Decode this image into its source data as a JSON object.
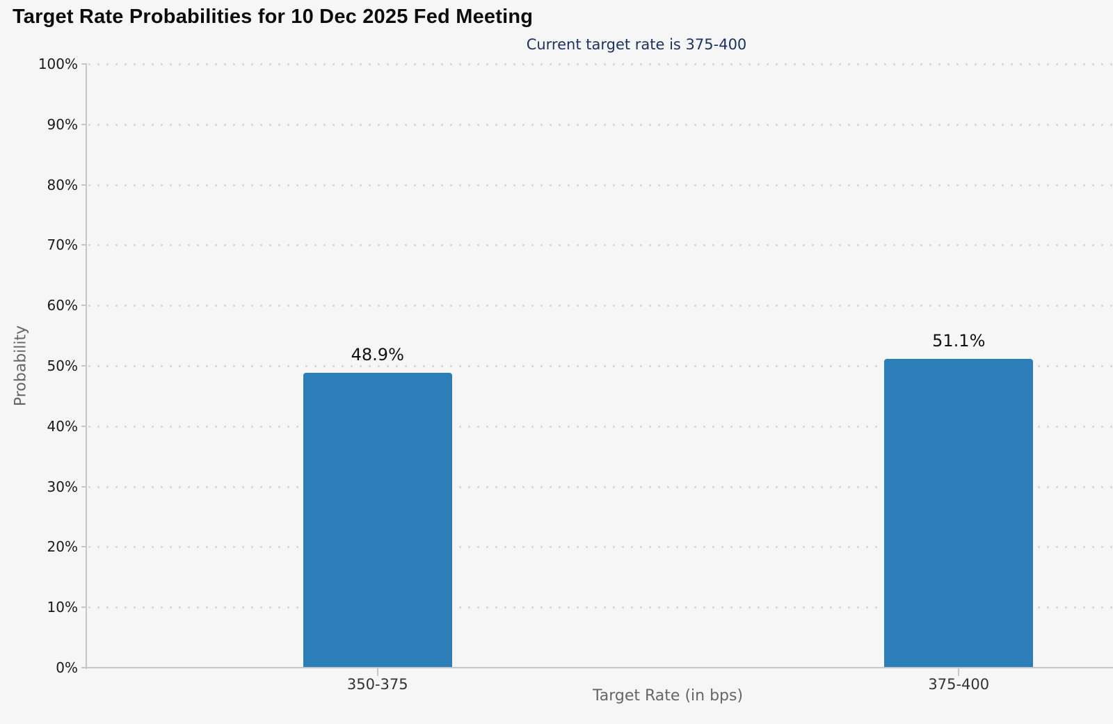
{
  "header": {
    "title": "Target Rate Probabilities for 10 Dec 2025 Fed Meeting",
    "subtitle": "Current target rate is 375-400"
  },
  "chart_data": {
    "type": "bar",
    "title": "Target Rate Probabilities for 10 Dec 2025 Fed Meeting",
    "subtitle": "Current target rate is 375-400",
    "categories": [
      "350-375",
      "375-400"
    ],
    "values": [
      48.9,
      51.1
    ],
    "value_labels": [
      "48.9%",
      "51.1%"
    ],
    "xlabel": "Target Rate (in bps)",
    "ylabel": "Probability",
    "ylim": [
      0,
      100
    ],
    "ytick_step": 10,
    "ytick_labels": [
      "0%",
      "10%",
      "20%",
      "30%",
      "40%",
      "50%",
      "60%",
      "70%",
      "80%",
      "90%",
      "100%"
    ],
    "grid": "dotted-horizontal",
    "legend": "none",
    "bar_color": "#2b7eb8",
    "subtitle_color": "#1b3264",
    "axis_color": "#c6c6c6",
    "grid_dot_color": "#dadada",
    "background_color": "#f6f6f6"
  }
}
